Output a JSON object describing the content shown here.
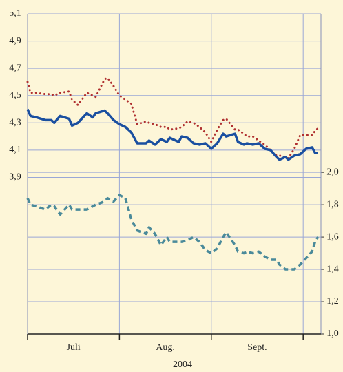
{
  "chart_data": {
    "type": "line",
    "xlabel": "2004",
    "x": [
      0,
      1,
      3,
      6,
      8,
      9,
      11,
      14,
      15,
      17,
      20,
      22,
      23,
      26,
      27,
      29,
      31,
      33,
      35,
      37,
      40,
      41,
      43,
      45,
      47,
      48,
      51,
      52,
      54,
      56,
      58,
      60,
      62,
      64,
      66,
      67,
      70,
      71,
      73,
      74,
      76,
      78,
      80,
      82,
      84,
      85,
      87,
      88,
      90,
      92,
      94,
      96,
      97,
      98
    ],
    "xlim": [
      0,
      99
    ],
    "xticks": [
      {
        "value": 15.5,
        "label": "Juli"
      },
      {
        "value": 46.5,
        "label": "Aug."
      },
      {
        "value": 77.5,
        "label": "Sept."
      }
    ],
    "x_tick_marks": [
      0,
      31,
      62,
      93
    ],
    "ylim": [
      2.75,
      5.1
    ],
    "yticks": [
      {
        "value": 3.9,
        "label": "3,9"
      },
      {
        "value": 4.1,
        "label": "4,1"
      },
      {
        "value": 4.3,
        "label": "4,3"
      },
      {
        "value": 4.5,
        "label": "4,5"
      },
      {
        "value": 4.7,
        "label": "4,7"
      },
      {
        "value": 4.9,
        "label": "4,9"
      },
      {
        "value": 5.1,
        "label": "5,1"
      }
    ],
    "y2lim": [
      1.0,
      2.98
    ],
    "y2ticks": [
      {
        "value": 1.0,
        "label": "1,0"
      },
      {
        "value": 1.2,
        "label": "1,2"
      },
      {
        "value": 1.4,
        "label": "1,4"
      },
      {
        "value": 1.6,
        "label": "1,6"
      },
      {
        "value": 1.8,
        "label": "1,8"
      },
      {
        "value": 2.0,
        "label": "2,0"
      }
    ],
    "grid": true,
    "series": [
      {
        "color": "#1a4fa0",
        "style": "solid",
        "values": [
          4.4,
          4.35,
          4.34,
          4.32,
          4.32,
          4.3,
          4.35,
          4.33,
          4.28,
          4.3,
          4.37,
          4.34,
          4.37,
          4.39,
          4.37,
          4.32,
          4.29,
          4.27,
          4.23,
          4.15,
          4.15,
          4.17,
          4.14,
          4.18,
          4.16,
          4.19,
          4.16,
          4.2,
          4.19,
          4.15,
          4.14,
          4.15,
          4.11,
          4.15,
          4.22,
          4.2,
          4.22,
          4.16,
          4.14,
          4.15,
          4.14,
          4.15,
          4.11,
          4.1,
          4.05,
          4.03,
          4.05,
          4.03,
          4.06,
          4.07,
          4.11,
          4.12,
          4.08,
          4.08
        ]
      },
      {
        "color": "#b03030",
        "style": "dotted",
        "values": [
          4.6,
          4.52,
          4.52,
          4.51,
          4.51,
          4.5,
          4.52,
          4.53,
          4.47,
          4.43,
          4.52,
          4.5,
          4.49,
          4.62,
          4.63,
          4.57,
          4.5,
          4.47,
          4.44,
          4.29,
          4.31,
          4.3,
          4.29,
          4.27,
          4.27,
          4.25,
          4.26,
          4.27,
          4.31,
          4.3,
          4.27,
          4.23,
          4.16,
          4.25,
          4.32,
          4.33,
          4.25,
          4.25,
          4.22,
          4.2,
          4.2,
          4.17,
          4.14,
          4.1,
          4.06,
          4.06,
          4.05,
          4.04,
          4.11,
          4.21,
          4.21,
          4.21,
          4.24,
          4.26
        ]
      },
      {
        "color": "#4a8a9a",
        "style": "dashed",
        "axis": "y2",
        "values": [
          1.84,
          1.8,
          1.79,
          1.77,
          1.8,
          1.79,
          1.74,
          1.8,
          1.77,
          1.77,
          1.77,
          1.79,
          1.8,
          1.82,
          1.84,
          1.82,
          1.86,
          1.84,
          1.71,
          1.64,
          1.62,
          1.66,
          1.62,
          1.55,
          1.6,
          1.57,
          1.57,
          1.57,
          1.58,
          1.6,
          1.57,
          1.52,
          1.5,
          1.53,
          1.6,
          1.63,
          1.55,
          1.51,
          1.5,
          1.51,
          1.5,
          1.51,
          1.48,
          1.46,
          1.46,
          1.43,
          1.4,
          1.4,
          1.4,
          1.43,
          1.47,
          1.51,
          1.57,
          1.6
        ]
      }
    ]
  }
}
